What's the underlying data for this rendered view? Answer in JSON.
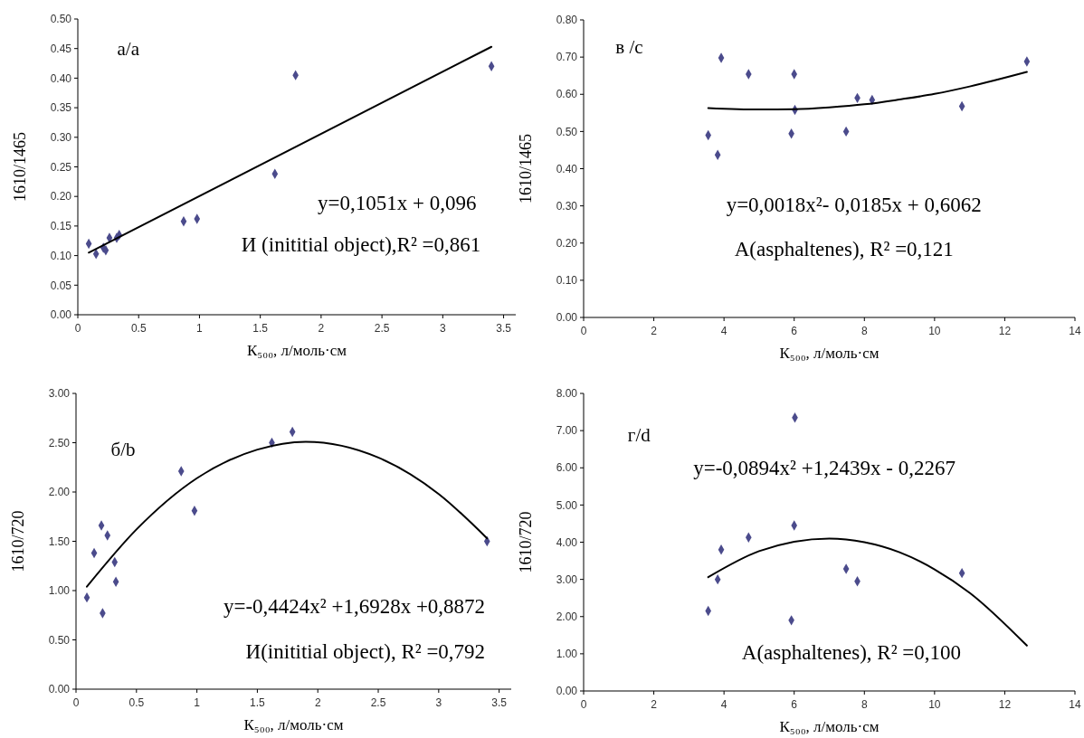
{
  "chart_data": [
    {
      "type": "scatter",
      "xlabel": "К₅₀₀, л/моль·см",
      "ylabel": "1610/1465",
      "xlim": [
        0,
        3.6
      ],
      "xticks": [
        0,
        0.5,
        1,
        1.5,
        2,
        2.5,
        3,
        3.5
      ],
      "ylim": [
        0,
        0.5
      ],
      "yticks": [
        {
          "value": 0,
          "label": "0.00"
        },
        {
          "value": 0.05,
          "label": "0.05"
        },
        {
          "value": 0.1,
          "label": "0.10"
        },
        {
          "value": 0.15,
          "label": "0.15"
        },
        {
          "value": 0.2,
          "label": "0.20"
        },
        {
          "value": 0.25,
          "label": "0.25"
        },
        {
          "value": 0.3,
          "label": "0.30"
        },
        {
          "value": 0.35,
          "label": "0.35"
        },
        {
          "value": 0.4,
          "label": "0.40"
        },
        {
          "value": 0.45,
          "label": "0.45"
        },
        {
          "value": 0.5,
          "label": "0.50"
        }
      ],
      "annotations": [
        "а/a",
        "y=0,1051x + 0,096",
        "И (inititial object),R² =0,861"
      ],
      "series": [
        {
          "marker": "diamond",
          "color": "#4b4b8c",
          "x": [
            0.09,
            0.15,
            0.21,
            0.23,
            0.26,
            0.32,
            0.34,
            0.87,
            0.98,
            1.62,
            1.79,
            3.4
          ],
          "values": [
            0.12,
            0.103,
            0.113,
            0.109,
            0.13,
            0.13,
            0.135,
            0.158,
            0.162,
            0.238,
            0.405,
            0.42
          ]
        },
        {
          "type": "line",
          "color": "#000000",
          "x": [
            0.09,
            3.4
          ],
          "values": [
            0.105,
            0.453
          ]
        }
      ]
    },
    {
      "type": "scatter",
      "xlabel": "К₅₀₀, л/моль·см",
      "ylabel": "1610/1465",
      "xlim": [
        0,
        14
      ],
      "xticks": [
        0,
        2,
        4,
        6,
        8,
        10,
        12,
        14
      ],
      "ylim": [
        0,
        0.8
      ],
      "yticks": [
        {
          "value": 0,
          "label": "0.00"
        },
        {
          "value": 0.1,
          "label": "0.10"
        },
        {
          "value": 0.2,
          "label": "0.20"
        },
        {
          "value": 0.3,
          "label": "0.30"
        },
        {
          "value": 0.4,
          "label": "0.40"
        },
        {
          "value": 0.5,
          "label": "0.50"
        },
        {
          "value": 0.6,
          "label": "0.60"
        },
        {
          "value": 0.7,
          "label": "0.70"
        },
        {
          "value": 0.8,
          "label": "0.80"
        }
      ],
      "annotations": [
        "в /с",
        "y=0,0018x²- 0,0185x + 0,6062",
        "A(asphaltenes), R² =0,121"
      ],
      "series": [
        {
          "marker": "diamond",
          "color": "#4b4b8c",
          "x": [
            3.55,
            3.82,
            3.92,
            4.7,
            5.92,
            6.0,
            6.02,
            7.48,
            7.8,
            8.22,
            10.78,
            12.63
          ],
          "values": [
            0.49,
            0.437,
            0.698,
            0.654,
            0.494,
            0.654,
            0.558,
            0.5,
            0.59,
            0.585,
            0.568,
            0.688
          ]
        },
        {
          "type": "line",
          "color": "#000000",
          "x": [
            3.55,
            5,
            6,
            7,
            8,
            9,
            10,
            11,
            12.63
          ],
          "values": [
            0.563,
            0.559,
            0.56,
            0.565,
            0.573,
            0.586,
            0.601,
            0.621,
            0.66
          ]
        }
      ]
    },
    {
      "type": "scatter",
      "xlabel": "К₅₀₀, л/моль·см",
      "ylabel": "1610/720",
      "xlim": [
        0,
        3.6
      ],
      "xticks": [
        0,
        0.5,
        1,
        1.5,
        2,
        2.5,
        3,
        3.5
      ],
      "ylim": [
        0,
        3
      ],
      "yticks": [
        {
          "value": 0,
          "label": "0.00"
        },
        {
          "value": 0.5,
          "label": "0.50"
        },
        {
          "value": 1,
          "label": "1.00"
        },
        {
          "value": 1.5,
          "label": "1.50"
        },
        {
          "value": 2,
          "label": "2.00"
        },
        {
          "value": 2.5,
          "label": "2.50"
        },
        {
          "value": 3,
          "label": "3.00"
        }
      ],
      "annotations": [
        "б/b",
        "y=-0,4424x² +1,6928x +0,8872",
        "И(inititial object), R² =0,792"
      ],
      "series": [
        {
          "marker": "diamond",
          "color": "#4b4b8c",
          "x": [
            0.09,
            0.15,
            0.21,
            0.22,
            0.26,
            0.32,
            0.33,
            0.87,
            0.98,
            1.62,
            1.79,
            3.4
          ],
          "values": [
            0.93,
            1.38,
            1.66,
            0.77,
            1.56,
            1.29,
            1.09,
            2.21,
            1.81,
            2.5,
            2.61,
            1.5
          ]
        },
        {
          "type": "line",
          "color": "#000000",
          "x": [
            0.09,
            0.5,
            1,
            1.5,
            1.9,
            2.5,
            3,
            3.4
          ],
          "values": [
            1.04,
            1.62,
            2.14,
            2.43,
            2.51,
            2.35,
            1.98,
            1.53
          ]
        }
      ]
    },
    {
      "type": "scatter",
      "xlabel": "К₅₀₀, л/моль·см",
      "ylabel": "1610/720",
      "xlim": [
        0,
        14
      ],
      "xticks": [
        0,
        2,
        4,
        6,
        8,
        10,
        12,
        14
      ],
      "ylim": [
        0,
        8
      ],
      "yticks": [
        {
          "value": 0,
          "label": "0.00"
        },
        {
          "value": 1,
          "label": "1.00"
        },
        {
          "value": 2,
          "label": "2.00"
        },
        {
          "value": 3,
          "label": "3.00"
        },
        {
          "value": 4,
          "label": "4.00"
        },
        {
          "value": 5,
          "label": "5.00"
        },
        {
          "value": 6,
          "label": "6.00"
        },
        {
          "value": 7,
          "label": "7.00"
        },
        {
          "value": 8,
          "label": "8.00"
        }
      ],
      "annotations": [
        "г/d",
        "y=-0,0894x² +1,2439x - 0,2267",
        "A(asphaltenes), R² =0,100"
      ],
      "series": [
        {
          "marker": "diamond",
          "color": "#4b4b8c",
          "x": [
            3.55,
            3.82,
            3.92,
            4.7,
            5.92,
            6.0,
            6.02,
            7.48,
            7.8,
            10.78
          ],
          "values": [
            2.15,
            3.0,
            3.8,
            4.13,
            1.9,
            4.45,
            7.35,
            3.28,
            2.95,
            3.17
          ]
        },
        {
          "type": "line",
          "color": "#000000",
          "x": [
            3.55,
            5,
            7,
            8,
            9,
            10,
            11,
            12.63
          ],
          "values": [
            3.06,
            3.76,
            4.1,
            4.0,
            3.73,
            3.27,
            2.64,
            1.22
          ]
        }
      ]
    }
  ]
}
